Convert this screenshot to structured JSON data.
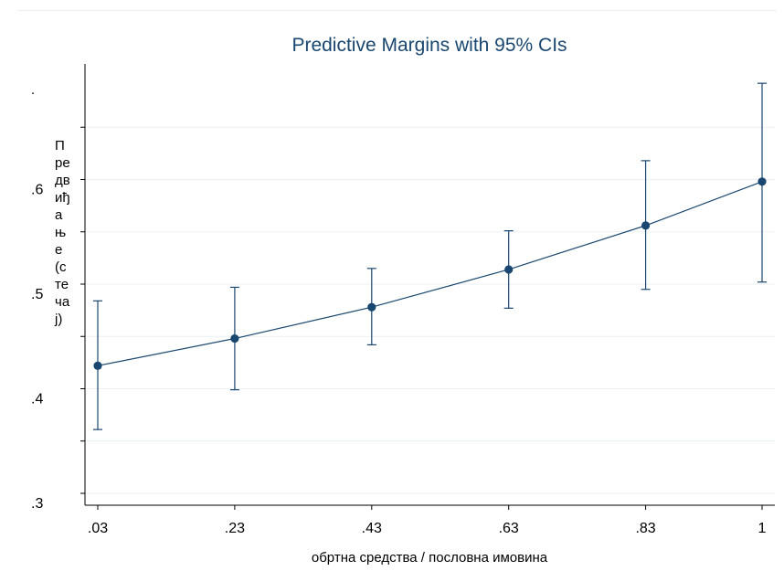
{
  "chart_data": {
    "type": "line",
    "title": "Predictive Margins with 95% CIs",
    "xlabel": "обртна средства / пословна имовина",
    "ylabel": "П\nре\nдв\nиђ\nа\nњ\nе\n(с\nте\nча\nј)",
    "stray_mark": ".",
    "x": [
      0.03,
      0.23,
      0.43,
      0.63,
      0.83,
      1
    ],
    "x_tick_labels": [
      ".03",
      ".23",
      ".43",
      ".63",
      ".83",
      "1"
    ],
    "y_ticks": [
      0.3,
      0.4,
      0.5,
      0.6
    ],
    "y_tick_labels": [
      ".3",
      ".4",
      ".5",
      ".6"
    ],
    "ylim": [
      0.29,
      0.69
    ],
    "series": [
      {
        "values": [
          0.422,
          0.448,
          0.478,
          0.514,
          0.556,
          0.598
        ],
        "ci_lower": [
          0.361,
          0.399,
          0.442,
          0.477,
          0.495,
          0.502
        ],
        "ci_upper": [
          0.484,
          0.497,
          0.515,
          0.551,
          0.618,
          0.692
        ]
      }
    ],
    "grid": true,
    "colors": {
      "series": "#1a476f",
      "grid": "#eaf2f3",
      "axis": "#000000"
    }
  }
}
